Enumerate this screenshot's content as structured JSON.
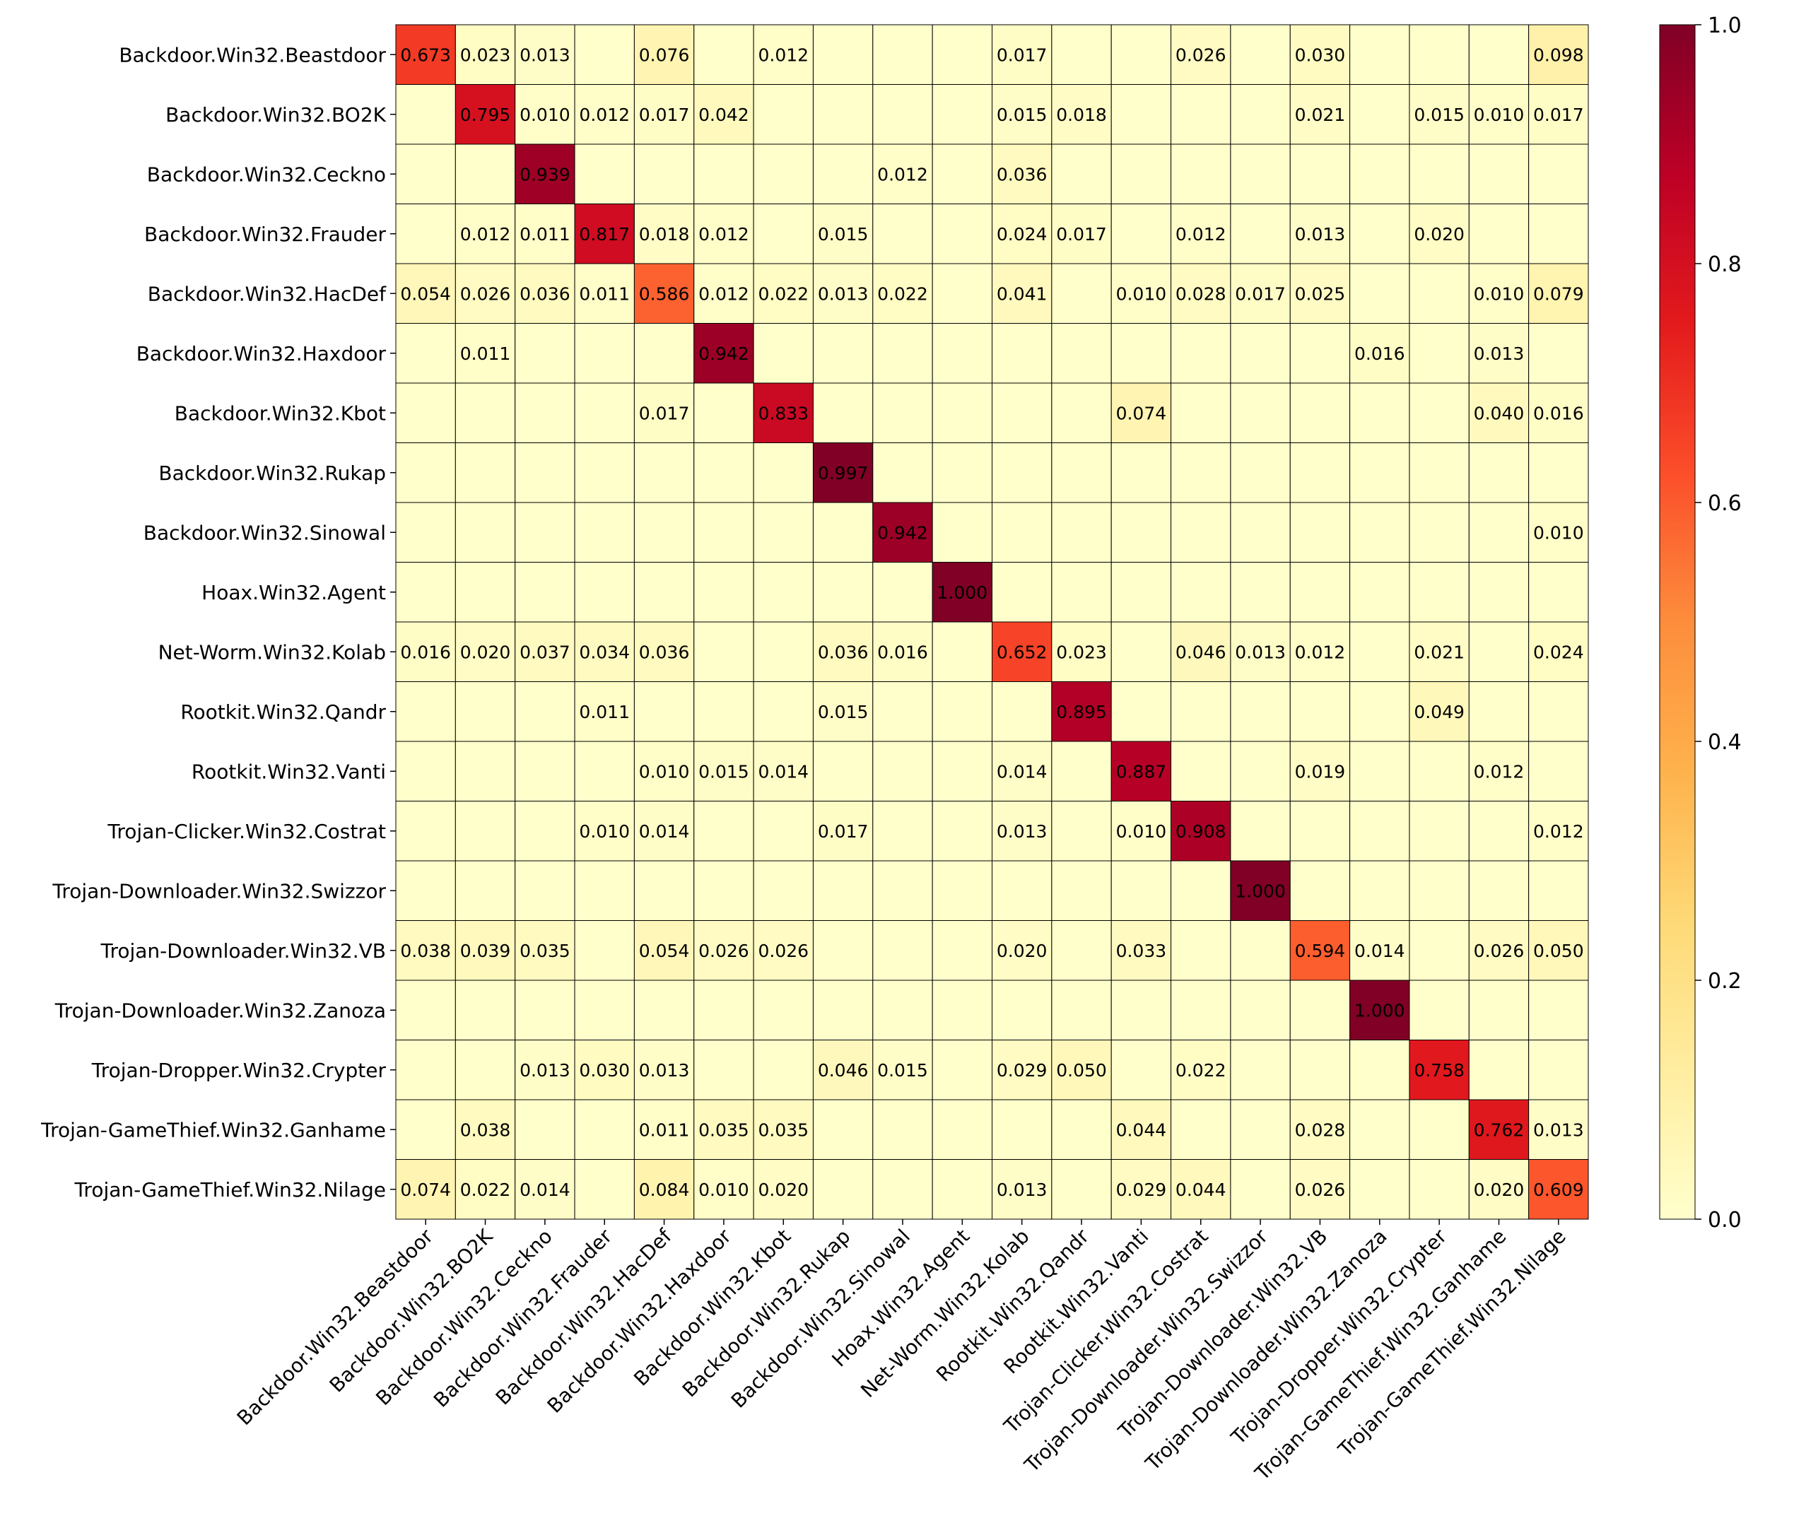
{
  "chart_data": {
    "type": "heatmap",
    "title": "",
    "xlabel": "",
    "ylabel": "",
    "colormap": "YlOrRd",
    "vmin": 0.0,
    "vmax": 1.0,
    "colorbar_ticks": [
      "0.0",
      "0.2",
      "0.4",
      "0.6",
      "0.8",
      "1.0"
    ],
    "colorbar_tick_values": [
      0.0,
      0.2,
      0.4,
      0.6,
      0.8,
      1.0
    ],
    "annotation_threshold": 0.01,
    "labels": [
      "Backdoor.Win32.Beastdoor",
      "Backdoor.Win32.BO2K",
      "Backdoor.Win32.Ceckno",
      "Backdoor.Win32.Frauder",
      "Backdoor.Win32.HacDef",
      "Backdoor.Win32.Haxdoor",
      "Backdoor.Win32.Kbot",
      "Backdoor.Win32.Rukap",
      "Backdoor.Win32.Sinowal",
      "Hoax.Win32.Agent",
      "Net-Worm.Win32.Kolab",
      "Rootkit.Win32.Qandr",
      "Rootkit.Win32.Vanti",
      "Trojan-Clicker.Win32.Costrat",
      "Trojan-Downloader.Win32.Swizzor",
      "Trojan-Downloader.Win32.VB",
      "Trojan-Downloader.Win32.Zanoza",
      "Trojan-Dropper.Win32.Crypter",
      "Trojan-GameThief.Win32.Ganhame",
      "Trojan-GameThief.Win32.Nilage"
    ],
    "matrix": [
      [
        0.673,
        0.023,
        0.013,
        0,
        0.076,
        0,
        0.012,
        0,
        0,
        0,
        0.017,
        0,
        0,
        0.026,
        0,
        0.03,
        0,
        0,
        0,
        0.098
      ],
      [
        0,
        0.795,
        0.01,
        0.012,
        0.017,
        0.042,
        0,
        0,
        0,
        0,
        0.015,
        0.018,
        0,
        0,
        0,
        0.021,
        0,
        0.015,
        0.01,
        0.017
      ],
      [
        0,
        0,
        0.939,
        0,
        0,
        0,
        0,
        0,
        0.012,
        0,
        0.036,
        0,
        0,
        0,
        0,
        0,
        0,
        0,
        0,
        0
      ],
      [
        0,
        0.012,
        0.011,
        0.817,
        0.018,
        0.012,
        0,
        0.015,
        0,
        0,
        0.024,
        0.017,
        0,
        0.012,
        0,
        0.013,
        0,
        0.02,
        0,
        0
      ],
      [
        0.054,
        0.026,
        0.036,
        0.011,
        0.586,
        0.012,
        0.022,
        0.013,
        0.022,
        0,
        0.041,
        0,
        0.01,
        0.028,
        0.017,
        0.025,
        0,
        0,
        0.01,
        0.079
      ],
      [
        0,
        0.011,
        0,
        0,
        0,
        0.942,
        0,
        0,
        0,
        0,
        0,
        0,
        0,
        0,
        0,
        0,
        0.016,
        0,
        0.013,
        0
      ],
      [
        0,
        0,
        0,
        0,
        0.017,
        0,
        0.833,
        0,
        0,
        0,
        0,
        0,
        0.074,
        0,
        0,
        0,
        0,
        0,
        0.04,
        0.016
      ],
      [
        0,
        0,
        0,
        0,
        0,
        0,
        0,
        0.997,
        0,
        0,
        0,
        0,
        0,
        0,
        0,
        0,
        0,
        0,
        0,
        0
      ],
      [
        0,
        0,
        0,
        0,
        0,
        0,
        0,
        0,
        0.942,
        0,
        0,
        0,
        0,
        0,
        0,
        0,
        0,
        0,
        0,
        0.01
      ],
      [
        0,
        0,
        0,
        0,
        0,
        0,
        0,
        0,
        0,
        1.0,
        0,
        0,
        0,
        0,
        0,
        0,
        0,
        0,
        0,
        0
      ],
      [
        0.016,
        0.02,
        0.037,
        0.034,
        0.036,
        0,
        0,
        0.036,
        0.016,
        0,
        0.652,
        0.023,
        0,
        0.046,
        0.013,
        0.012,
        0,
        0.021,
        0,
        0.024
      ],
      [
        0,
        0,
        0,
        0.011,
        0,
        0,
        0,
        0.015,
        0,
        0,
        0,
        0.895,
        0,
        0,
        0,
        0,
        0,
        0.049,
        0,
        0
      ],
      [
        0,
        0,
        0,
        0,
        0.01,
        0.015,
        0.014,
        0,
        0,
        0,
        0.014,
        0,
        0.887,
        0,
        0,
        0.019,
        0,
        0,
        0.012,
        0
      ],
      [
        0,
        0,
        0,
        0.01,
        0.014,
        0,
        0,
        0.017,
        0,
        0,
        0.013,
        0,
        0.01,
        0.908,
        0,
        0,
        0,
        0,
        0,
        0.012
      ],
      [
        0,
        0,
        0,
        0,
        0,
        0,
        0,
        0,
        0,
        0,
        0,
        0,
        0,
        0,
        1.0,
        0,
        0,
        0,
        0,
        0
      ],
      [
        0.038,
        0.039,
        0.035,
        0,
        0.054,
        0.026,
        0.026,
        0,
        0,
        0,
        0.02,
        0,
        0.033,
        0,
        0,
        0.594,
        0.014,
        0,
        0.026,
        0.05
      ],
      [
        0,
        0,
        0,
        0,
        0,
        0,
        0,
        0,
        0,
        0,
        0,
        0,
        0,
        0,
        0,
        0,
        1.0,
        0,
        0,
        0
      ],
      [
        0,
        0,
        0.013,
        0.03,
        0.013,
        0,
        0,
        0.046,
        0.015,
        0,
        0.029,
        0.05,
        0,
        0.022,
        0,
        0,
        0,
        0.758,
        0,
        0
      ],
      [
        0,
        0.038,
        0,
        0,
        0.011,
        0.035,
        0.035,
        0,
        0,
        0,
        0,
        0,
        0.044,
        0,
        0,
        0.028,
        0,
        0,
        0.762,
        0.013
      ],
      [
        0.074,
        0.022,
        0.014,
        0,
        0.084,
        0.01,
        0.02,
        0,
        0,
        0,
        0.013,
        0,
        0.029,
        0.044,
        0,
        0.026,
        0,
        0,
        0.02,
        0.609
      ]
    ]
  }
}
